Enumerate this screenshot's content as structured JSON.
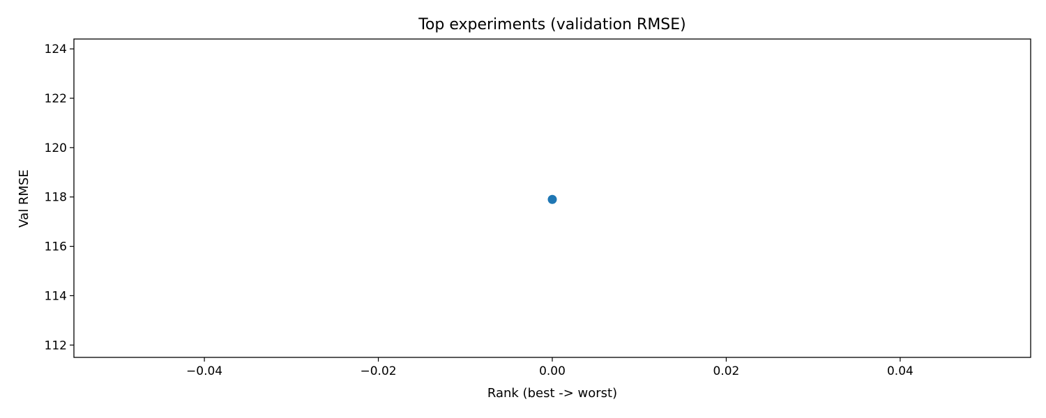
{
  "chart_data": {
    "type": "scatter",
    "title": "Top experiments (validation RMSE)",
    "xlabel": "Rank (best -> worst)",
    "ylabel": "Val RMSE",
    "x": [
      0
    ],
    "y": [
      117.9
    ],
    "xlim": [
      -0.055,
      0.055
    ],
    "ylim": [
      111.5,
      124.4
    ],
    "xticks": [
      -0.04,
      -0.02,
      0.0,
      0.02,
      0.04
    ],
    "xtick_labels": [
      "−0.04",
      "−0.02",
      "0.00",
      "0.02",
      "0.04"
    ],
    "yticks": [
      112,
      114,
      116,
      118,
      120,
      122,
      124
    ],
    "ytick_labels": [
      "112",
      "114",
      "116",
      "118",
      "120",
      "122",
      "124"
    ],
    "marker_color": "#1f77b4",
    "grid": false,
    "legend": "none"
  }
}
